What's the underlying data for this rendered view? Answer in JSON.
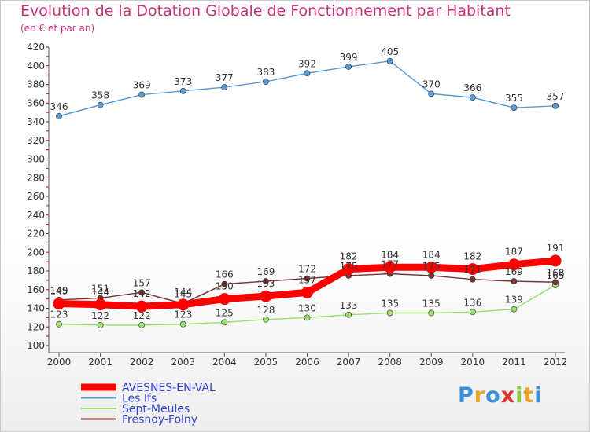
{
  "title": "Evolution de la Dotation Globale de Fonctionnement par Habitant",
  "subtitle": "(en € et par an)",
  "logo": {
    "text": "Proxiti",
    "letters": [
      "P",
      "r",
      "o",
      "x",
      "i",
      "t",
      "i"
    ],
    "colors": [
      "#3b8fd8",
      "#f0a020",
      "#3b8fd8",
      "#e0352b",
      "#8dc63f",
      "#f0a020",
      "#3b8fd8"
    ]
  },
  "chart_data": {
    "type": "line",
    "title": "Evolution de la Dotation Globale de Fonctionnement par Habitant",
    "subtitle": "(en € et par an)",
    "x": [
      "2000",
      "2001",
      "2002",
      "2003",
      "2004",
      "2005",
      "2006",
      "2007",
      "2008",
      "2009",
      "2010",
      "2011",
      "2012"
    ],
    "ylim": [
      100,
      420
    ],
    "yticks": [
      100,
      120,
      140,
      160,
      180,
      200,
      220,
      240,
      260,
      280,
      300,
      320,
      340,
      360,
      380,
      400,
      420
    ],
    "grid": false,
    "legend": "bottom-left",
    "series": [
      {
        "name": "AVESNES-EN-VAL",
        "color": "#ff0000",
        "values": [
          145,
          144,
          142,
          144,
          150,
          153,
          157,
          182,
          184,
          184,
          182,
          187,
          191
        ]
      },
      {
        "name": "Les Ifs",
        "color": "#5b9bd5",
        "values": [
          346,
          358,
          369,
          373,
          377,
          383,
          392,
          399,
          405,
          370,
          366,
          355,
          357
        ]
      },
      {
        "name": "Sept-Meules",
        "color": "#9de070",
        "values": [
          123,
          122,
          122,
          123,
          125,
          128,
          130,
          133,
          135,
          135,
          136,
          139,
          165
        ]
      },
      {
        "name": "Fresnoy-Folny",
        "color": "#7a3333",
        "values": [
          149,
          151,
          157,
          145,
          166,
          169,
          172,
          175,
          177,
          175,
          171,
          169,
          168
        ]
      }
    ]
  }
}
